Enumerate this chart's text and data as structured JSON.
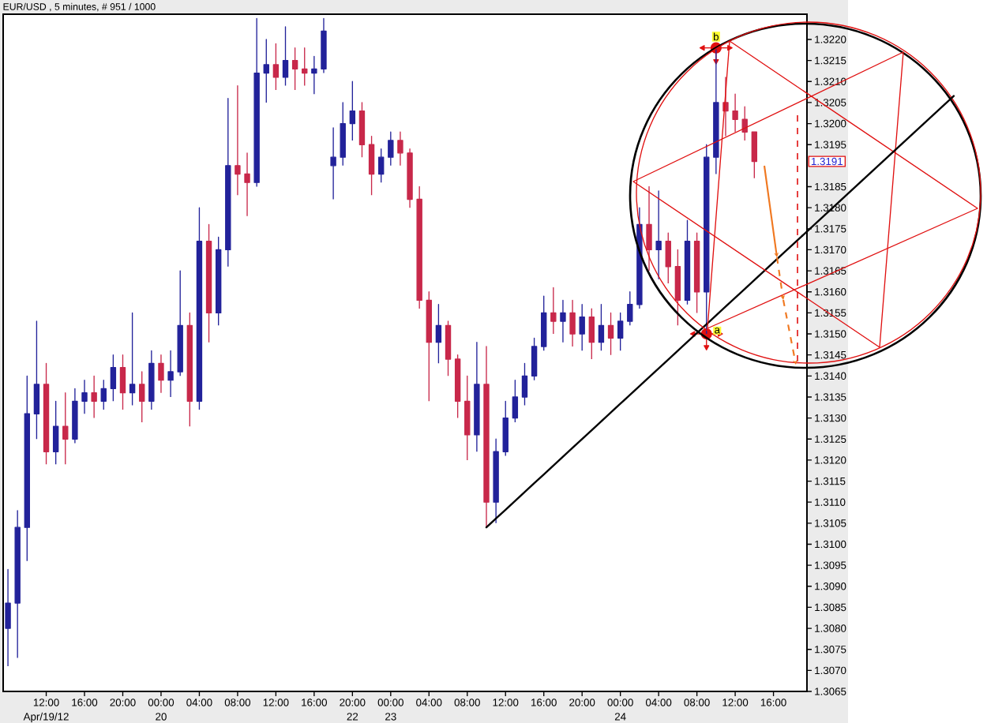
{
  "chart_data": {
    "type": "candlestick",
    "title": "EUR/USD , 5 minutes, # 951 / 1000",
    "categories": [
      null,
      null,
      null,
      null,
      "12:00\nApr/19/12",
      null,
      null,
      null,
      "16:00",
      null,
      null,
      null,
      "20:00",
      null,
      null,
      null,
      "00:00\n20",
      null,
      null,
      null,
      "04:00",
      null,
      null,
      null,
      "08:00",
      null,
      null,
      null,
      "12:00",
      null,
      null,
      null,
      "16:00",
      null,
      null,
      null,
      "20:00\n22",
      null,
      null,
      null,
      "00:00\n23",
      null,
      null,
      null,
      "04:00",
      null,
      null,
      null,
      "08:00",
      null,
      null,
      null,
      "12:00",
      null,
      null,
      null,
      "16:00",
      null,
      null,
      null,
      "20:00",
      null,
      null,
      null,
      "00:00\n24",
      null,
      null,
      null,
      "04:00",
      null,
      null,
      null,
      "08:00",
      null,
      null,
      null,
      "12:00",
      null,
      null,
      null,
      "16:00",
      null,
      null,
      null
    ],
    "ohlc": [
      [
        1.308,
        1.3094,
        1.3071,
        1.3086
      ],
      [
        1.3086,
        1.3108,
        1.3073,
        1.3104
      ],
      [
        1.3104,
        1.314,
        1.3096,
        1.3131
      ],
      [
        1.3131,
        1.3153,
        1.3125,
        1.3138
      ],
      [
        1.3138,
        1.3143,
        1.3119,
        1.3122
      ],
      [
        1.3122,
        1.3134,
        1.3119,
        1.3128
      ],
      [
        1.3128,
        1.3136,
        1.3119,
        1.3125
      ],
      [
        1.3125,
        1.3137,
        1.3124,
        1.3134
      ],
      [
        1.3134,
        1.3139,
        1.3131,
        1.3136
      ],
      [
        1.3136,
        1.314,
        1.313,
        1.3134
      ],
      [
        1.3134,
        1.3139,
        1.3132,
        1.3137
      ],
      [
        1.3137,
        1.3145,
        1.3134,
        1.3142
      ],
      [
        1.3142,
        1.3145,
        1.3132,
        1.3136
      ],
      [
        1.3136,
        1.3155,
        1.3133,
        1.3138
      ],
      [
        1.3138,
        1.3141,
        1.3129,
        1.3134
      ],
      [
        1.3134,
        1.3146,
        1.3132,
        1.3143
      ],
      [
        1.3143,
        1.3145,
        1.3136,
        1.3139
      ],
      [
        1.3139,
        1.3146,
        1.3135,
        1.3141
      ],
      [
        1.3141,
        1.3165,
        1.314,
        1.3152
      ],
      [
        1.3152,
        1.3155,
        1.3128,
        1.3134
      ],
      [
        1.3134,
        1.318,
        1.3132,
        1.3172
      ],
      [
        1.3172,
        1.3176,
        1.3148,
        1.3155
      ],
      [
        1.3155,
        1.3173,
        1.3152,
        1.317
      ],
      [
        1.317,
        1.3206,
        1.3166,
        1.319
      ],
      [
        1.319,
        1.3209,
        1.3183,
        1.3188
      ],
      [
        1.3188,
        1.3193,
        1.3178,
        1.3186
      ],
      [
        1.3186,
        1.3225,
        1.3185,
        1.3212
      ],
      [
        1.3212,
        1.322,
        1.3205,
        1.3214
      ],
      [
        1.3214,
        1.3219,
        1.3208,
        1.3211
      ],
      [
        1.3211,
        1.3223,
        1.3209,
        1.3215
      ],
      [
        1.3215,
        1.3218,
        1.3208,
        1.3213
      ],
      [
        1.3213,
        1.3218,
        1.3209,
        1.3212
      ],
      [
        1.3212,
        1.3216,
        1.3207,
        1.3213
      ],
      [
        1.3213,
        1.3225,
        1.3212,
        1.3222
      ],
      [
        1.319,
        1.3199,
        1.3182,
        1.3192
      ],
      [
        1.3192,
        1.3205,
        1.319,
        1.32
      ],
      [
        1.32,
        1.321,
        1.3196,
        1.3203
      ],
      [
        1.3203,
        1.3205,
        1.3192,
        1.3195
      ],
      [
        1.3195,
        1.3197,
        1.3183,
        1.3188
      ],
      [
        1.3188,
        1.3194,
        1.3186,
        1.3192
      ],
      [
        1.3192,
        1.3198,
        1.319,
        1.3196
      ],
      [
        1.3196,
        1.3198,
        1.319,
        1.3193
      ],
      [
        1.3193,
        1.3194,
        1.318,
        1.3182
      ],
      [
        1.3182,
        1.3185,
        1.3156,
        1.3158
      ],
      [
        1.3158,
        1.316,
        1.3134,
        1.3148
      ],
      [
        1.3148,
        1.3157,
        1.3143,
        1.3152
      ],
      [
        1.3152,
        1.3153,
        1.314,
        1.3144
      ],
      [
        1.3144,
        1.3145,
        1.313,
        1.3134
      ],
      [
        1.3134,
        1.314,
        1.312,
        1.3126
      ],
      [
        1.3126,
        1.3148,
        1.3122,
        1.3138
      ],
      [
        1.3138,
        1.3147,
        1.3104,
        1.311
      ],
      [
        1.311,
        1.3125,
        1.3105,
        1.3122
      ],
      [
        1.3122,
        1.3134,
        1.3121,
        1.313
      ],
      [
        1.313,
        1.3139,
        1.3129,
        1.3135
      ],
      [
        1.3135,
        1.3143,
        1.3133,
        1.314
      ],
      [
        1.314,
        1.3149,
        1.3139,
        1.3147
      ],
      [
        1.3147,
        1.3159,
        1.3146,
        1.3155
      ],
      [
        1.3155,
        1.3161,
        1.315,
        1.3153
      ],
      [
        1.3153,
        1.3158,
        1.3148,
        1.3155
      ],
      [
        1.3155,
        1.3158,
        1.3147,
        1.315
      ],
      [
        1.315,
        1.3157,
        1.3146,
        1.3154
      ],
      [
        1.3154,
        1.3156,
        1.3144,
        1.3148
      ],
      [
        1.3148,
        1.3157,
        1.3146,
        1.3152
      ],
      [
        1.3152,
        1.3155,
        1.3145,
        1.3149
      ],
      [
        1.3149,
        1.3155,
        1.3146,
        1.3153
      ],
      [
        1.3153,
        1.316,
        1.3152,
        1.3157
      ],
      [
        1.3157,
        1.318,
        1.3156,
        1.3176
      ],
      [
        1.3176,
        1.3185,
        1.3165,
        1.317
      ],
      [
        1.317,
        1.3184,
        1.3163,
        1.3172
      ],
      [
        1.3172,
        1.3174,
        1.3162,
        1.3166
      ],
      [
        1.3166,
        1.317,
        1.3152,
        1.3158
      ],
      [
        1.3158,
        1.3177,
        1.3157,
        1.3172
      ],
      [
        1.3172,
        1.3174,
        1.3155,
        1.316
      ],
      [
        1.316,
        1.3195,
        1.315,
        1.3192
      ],
      [
        1.3192,
        1.3218,
        1.3188,
        1.3205
      ],
      [
        1.3205,
        1.3211,
        1.3197,
        1.3203
      ],
      [
        1.3203,
        1.3207,
        1.3198,
        1.3201
      ],
      [
        1.3201,
        1.3204,
        1.3196,
        1.3198
      ],
      [
        1.3198,
        1.3198,
        1.3187,
        1.3191
      ],
      null,
      null,
      null,
      null,
      null
    ],
    "colors": [
      "#22229a",
      "#22229a",
      "#22229a",
      "#22229a",
      "#c8284a",
      "#22229a",
      "#c8284a",
      "#22229a",
      "#22229a",
      "#c8284a",
      "#22229a",
      "#22229a",
      "#c8284a",
      "#22229a",
      "#c8284a",
      "#22229a",
      "#c8284a",
      "#22229a",
      "#22229a",
      "#c8284a",
      "#22229a",
      "#c8284a",
      "#22229a",
      "#22229a",
      "#c8284a",
      "#c8284a",
      "#22229a",
      "#22229a",
      "#c8284a",
      "#22229a",
      "#c8284a",
      "#c8284a",
      "#22229a",
      "#22229a",
      "#22229a",
      "#22229a",
      "#22229a",
      "#c8284a",
      "#c8284a",
      "#22229a",
      "#22229a",
      "#c8284a",
      "#c8284a",
      "#c8284a",
      "#c8284a",
      "#22229a",
      "#c8284a",
      "#c8284a",
      "#c8284a",
      "#22229a",
      "#c8284a",
      "#22229a",
      "#22229a",
      "#22229a",
      "#22229a",
      "#22229a",
      "#22229a",
      "#c8284a",
      "#22229a",
      "#c8284a",
      "#22229a",
      "#c8284a",
      "#22229a",
      "#c8284a",
      "#22229a",
      "#22229a",
      "#22229a",
      "#c8284a",
      "#22229a",
      "#c8284a",
      "#c8284a",
      "#22229a",
      "#c8284a",
      "#22229a",
      "#22229a",
      "#c8284a",
      "#c8284a",
      "#c8284a",
      "#c8284a",
      null,
      null,
      null,
      null,
      null
    ],
    "series": [
      {
        "type": "line",
        "color": "#000000",
        "values": [
          null,
          null,
          null,
          null,
          null,
          null,
          null,
          null,
          null,
          null,
          null,
          null,
          null,
          null,
          null,
          null,
          null,
          null,
          null,
          null,
          null,
          null,
          null,
          null,
          null,
          null,
          null,
          null,
          null,
          null,
          null,
          null,
          null,
          null,
          null,
          null,
          null,
          null,
          null,
          null,
          null,
          null,
          null,
          null,
          null,
          null,
          null,
          null,
          null,
          null,
          1.3104,
          1.31061,
          1.31082,
          1.31103,
          1.31124,
          1.31145,
          1.31166,
          1.31187,
          1.31208,
          1.31229,
          1.3125,
          1.31271,
          1.31292,
          1.31313,
          1.31334,
          1.31355,
          1.31376,
          1.31397,
          1.31418,
          1.31439,
          1.3146,
          1.31481,
          1.31502,
          1.31523,
          1.31544,
          1.31565,
          1.31586,
          1.31607,
          1.31628,
          1.31649,
          1.3167,
          1.31691,
          1.31712,
          1.31733
        ]
      }
    ],
    "ylim": [
      1.3065,
      1.3226
    ],
    "yticks": [
      {
        "value": 1.3065,
        "label": "1.3065"
      },
      {
        "value": 1.307,
        "label": "1.3070"
      },
      {
        "value": 1.3075,
        "label": "1.3075"
      },
      {
        "value": 1.308,
        "label": "1.3080"
      },
      {
        "value": 1.3085,
        "label": "1.3085"
      },
      {
        "value": 1.309,
        "label": "1.3090"
      },
      {
        "value": 1.3095,
        "label": "1.3095"
      },
      {
        "value": 1.31,
        "label": "1.3100"
      },
      {
        "value": 1.3105,
        "label": "1.3105"
      },
      {
        "value": 1.311,
        "label": "1.3110"
      },
      {
        "value": 1.3115,
        "label": "1.3115"
      },
      {
        "value": 1.312,
        "label": "1.3120"
      },
      {
        "value": 1.3125,
        "label": "1.3125"
      },
      {
        "value": 1.313,
        "label": "1.3130"
      },
      {
        "value": 1.3135,
        "label": "1.3135"
      },
      {
        "value": 1.314,
        "label": "1.3140"
      },
      {
        "value": 1.3145,
        "label": "1.3145"
      },
      {
        "value": 1.315,
        "label": "1.3150"
      },
      {
        "value": 1.3155,
        "label": "1.3155"
      },
      {
        "value": 1.316,
        "label": "1.3160"
      },
      {
        "value": 1.3165,
        "label": "1.3165"
      },
      {
        "value": 1.317,
        "label": "1.3170"
      },
      {
        "value": 1.3175,
        "label": "1.3175"
      },
      {
        "value": 1.318,
        "label": "1.3180"
      },
      {
        "value": 1.3185,
        "label": "1.3185"
      },
      {
        "value": 1.3195,
        "label": "1.3195"
      },
      {
        "value": 1.32,
        "label": "1.3200"
      },
      {
        "value": 1.3205,
        "label": "1.3205"
      },
      {
        "value": 1.321,
        "label": "1.3210"
      },
      {
        "value": 1.3215,
        "label": "1.3215"
      },
      {
        "value": 1.322,
        "label": "1.3220"
      }
    ],
    "annotations": [
      {
        "text": "a",
        "y": 1.315
      },
      {
        "text": "b",
        "y": 1.3218
      },
      "1.3191"
    ]
  }
}
